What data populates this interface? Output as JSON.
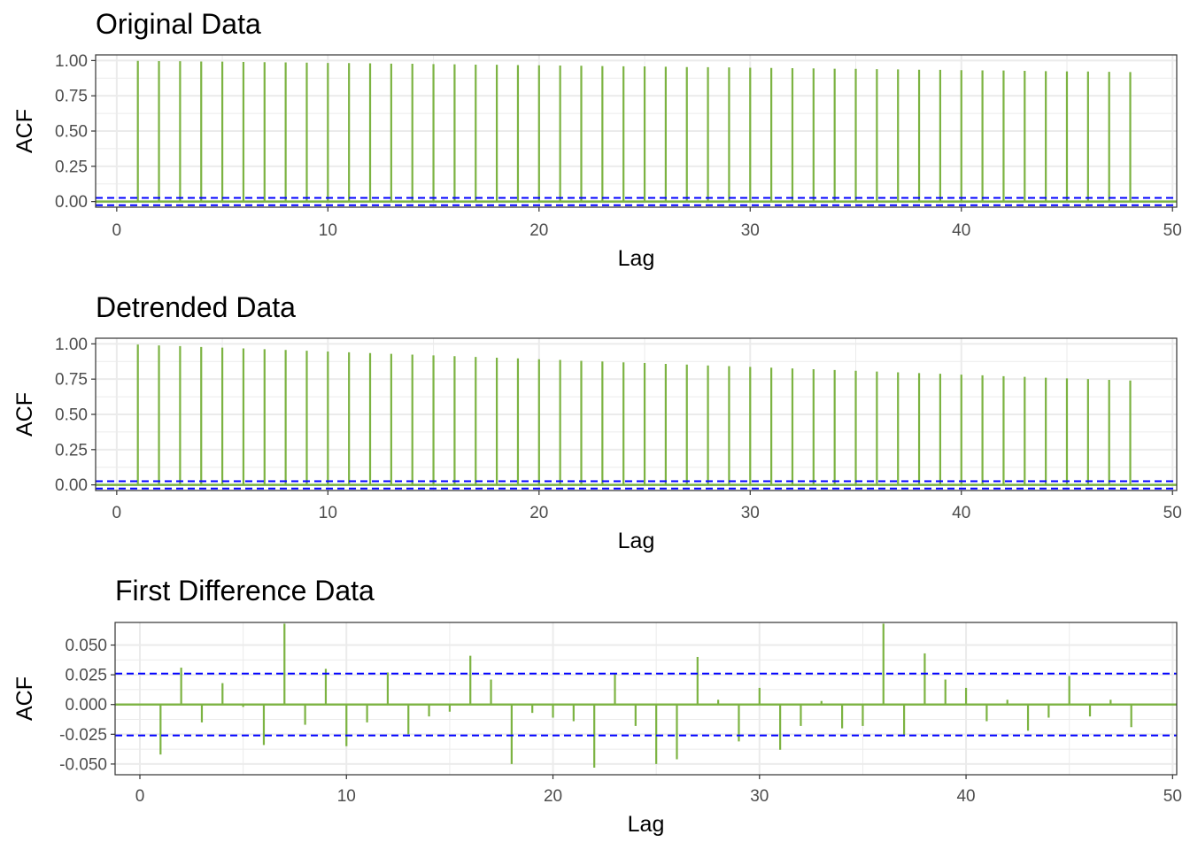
{
  "colors": {
    "bar": "#7cb342",
    "ci_line": "#0000ff",
    "zero_line": "#7cb342",
    "grid": "#ebebeb",
    "panel_border": "#333333",
    "text": "#000000",
    "tick_text": "#4d4d4d"
  },
  "chart_data": [
    {
      "type": "bar",
      "title": "Original Data",
      "xlabel": "Lag",
      "ylabel": "ACF",
      "xlim": [
        -1,
        50.2
      ],
      "ylim": [
        -0.04,
        1.04
      ],
      "xticks": [
        0,
        10,
        20,
        30,
        40,
        50
      ],
      "xtick_labels": [
        "0",
        "10",
        "20",
        "30",
        "40",
        "50"
      ],
      "yticks": [
        0,
        0.25,
        0.5,
        0.75,
        1
      ],
      "ytick_labels": [
        "0.00",
        "0.25",
        "0.50",
        "0.75",
        "1.00"
      ],
      "ci": 0.026,
      "lags": [
        1,
        2,
        3,
        4,
        5,
        6,
        7,
        8,
        9,
        10,
        11,
        12,
        13,
        14,
        15,
        16,
        17,
        18,
        19,
        20,
        21,
        22,
        23,
        24,
        25,
        26,
        27,
        28,
        29,
        30,
        31,
        32,
        33,
        34,
        35,
        36,
        37,
        38,
        39,
        40,
        41,
        42,
        43,
        44,
        45,
        46,
        47,
        48
      ],
      "values": [
        0.998,
        0.996,
        0.995,
        0.993,
        0.992,
        0.99,
        0.988,
        0.987,
        0.985,
        0.983,
        0.982,
        0.98,
        0.978,
        0.977,
        0.975,
        0.973,
        0.971,
        0.97,
        0.968,
        0.966,
        0.965,
        0.963,
        0.961,
        0.959,
        0.958,
        0.956,
        0.954,
        0.953,
        0.951,
        0.949,
        0.947,
        0.946,
        0.944,
        0.942,
        0.941,
        0.939,
        0.937,
        0.935,
        0.934,
        0.932,
        0.93,
        0.929,
        0.927,
        0.925,
        0.923,
        0.922,
        0.92,
        0.918
      ],
      "grid": true
    },
    {
      "type": "bar",
      "title": "Detrended Data",
      "xlabel": "Lag",
      "ylabel": "ACF",
      "xlim": [
        -1,
        50.2
      ],
      "ylim": [
        -0.04,
        1.04
      ],
      "xticks": [
        0,
        10,
        20,
        30,
        40,
        50
      ],
      "xtick_labels": [
        "0",
        "10",
        "20",
        "30",
        "40",
        "50"
      ],
      "yticks": [
        0,
        0.25,
        0.5,
        0.75,
        1
      ],
      "ytick_labels": [
        "0.00",
        "0.25",
        "0.50",
        "0.75",
        "1.00"
      ],
      "ci": 0.026,
      "lags": [
        1,
        2,
        3,
        4,
        5,
        6,
        7,
        8,
        9,
        10,
        11,
        12,
        13,
        14,
        15,
        16,
        17,
        18,
        19,
        20,
        21,
        22,
        23,
        24,
        25,
        26,
        27,
        28,
        29,
        30,
        31,
        32,
        33,
        34,
        35,
        36,
        37,
        38,
        39,
        40,
        41,
        42,
        43,
        44,
        45,
        46,
        47,
        48
      ],
      "values": [
        0.995,
        0.989,
        0.984,
        0.978,
        0.973,
        0.968,
        0.962,
        0.957,
        0.951,
        0.946,
        0.94,
        0.935,
        0.929,
        0.924,
        0.918,
        0.913,
        0.907,
        0.902,
        0.897,
        0.891,
        0.886,
        0.88,
        0.875,
        0.869,
        0.864,
        0.858,
        0.853,
        0.847,
        0.842,
        0.837,
        0.831,
        0.826,
        0.82,
        0.815,
        0.809,
        0.804,
        0.798,
        0.793,
        0.788,
        0.782,
        0.777,
        0.771,
        0.766,
        0.76,
        0.755,
        0.75,
        0.745,
        0.74
      ],
      "grid": true
    },
    {
      "type": "bar",
      "title": "First Difference Data",
      "xlabel": "Lag",
      "ylabel": "ACF",
      "xlim": [
        -1.2,
        50.2
      ],
      "ylim": [
        -0.059,
        0.069
      ],
      "xticks": [
        0,
        10,
        20,
        30,
        40,
        50
      ],
      "xtick_labels": [
        "0",
        "10",
        "20",
        "30",
        "40",
        "50"
      ],
      "yticks": [
        -0.05,
        -0.025,
        0,
        0.025,
        0.05
      ],
      "ytick_labels": [
        "-0.050",
        "-0.025",
        "0.000",
        "0.025",
        "0.050"
      ],
      "ci": 0.026,
      "lags": [
        1,
        2,
        3,
        4,
        5,
        6,
        7,
        8,
        9,
        10,
        11,
        12,
        13,
        14,
        15,
        16,
        17,
        18,
        19,
        20,
        21,
        22,
        23,
        24,
        25,
        26,
        27,
        28,
        29,
        30,
        31,
        32,
        33,
        34,
        35,
        36,
        37,
        38,
        39,
        40,
        41,
        42,
        43,
        44,
        45,
        46,
        47,
        48
      ],
      "values": [
        -0.042,
        0.031,
        -0.015,
        0.018,
        -0.002,
        -0.034,
        0.068,
        -0.017,
        0.03,
        -0.035,
        -0.015,
        0.027,
        -0.025,
        -0.01,
        -0.006,
        0.041,
        0.021,
        -0.05,
        -0.007,
        -0.011,
        -0.014,
        -0.053,
        0.026,
        -0.018,
        -0.05,
        -0.046,
        0.04,
        0.004,
        -0.031,
        0.014,
        -0.038,
        -0.018,
        0.003,
        -0.02,
        -0.018,
        0.068,
        -0.026,
        0.043,
        0.021,
        0.014,
        -0.014,
        0.004,
        -0.022,
        -0.011,
        0.024,
        -0.01,
        0.004,
        -0.019
      ],
      "grid": true
    }
  ]
}
